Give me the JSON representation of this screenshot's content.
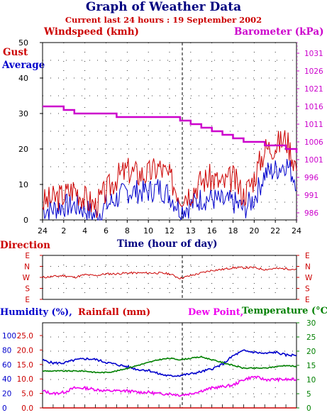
{
  "header": {
    "title": "Graph of Weather Data",
    "subtitle": "Current last 24 hours : 19 September 2002"
  },
  "colors": {
    "gust": "#cc0000",
    "average": "#0000cc",
    "barometer": "#cc00cc",
    "direction": "#cc0000",
    "humidity": "#0000cc",
    "rainfall": "#cc0000",
    "dewpoint": "#ee00ee",
    "temperature": "#008000",
    "title": "#000080"
  },
  "chart_data": [
    {
      "type": "line",
      "title": "Graph of Weather Data",
      "subtitle": "Current last 24 hours : 19 September 2002",
      "xlabel": "Time (hour of day)",
      "ylabel_left": "Windspeed (kmh)",
      "ylabel_right": "Barometer (kPa)",
      "legend_left": [
        "Gust",
        "Average"
      ],
      "ylim_left": [
        0,
        50
      ],
      "yticks_left": [
        "0",
        "10",
        "20",
        "30",
        "40",
        "50"
      ],
      "ylim_right": [
        984,
        1034
      ],
      "yticks_right": [
        "986",
        "991",
        "996",
        "1001",
        "1006",
        "1011",
        "1016",
        "1021",
        "1026",
        "1031"
      ],
      "xticks": [
        "24",
        "2",
        "4",
        "6",
        "8",
        "10",
        "12",
        "13",
        "16",
        "18",
        "20",
        "22",
        "24"
      ],
      "grid": true,
      "x_hours": [
        0,
        1,
        2,
        3,
        4,
        5,
        6,
        7,
        8,
        9,
        10,
        11,
        12,
        13,
        14,
        15,
        16,
        17,
        18,
        19,
        20,
        21,
        22,
        23,
        24
      ],
      "series": [
        {
          "name": "Gust",
          "axis": "left",
          "values": [
            5,
            6,
            7,
            9,
            6,
            4,
            8,
            12,
            14,
            13,
            13,
            15,
            12,
            7,
            8,
            11,
            12,
            10,
            12,
            7,
            12,
            20,
            21,
            23,
            15
          ]
        },
        {
          "name": "Average",
          "axis": "left",
          "values": [
            3,
            3,
            4,
            4,
            3,
            1,
            4,
            6,
            8,
            8,
            8,
            9,
            7,
            3,
            4,
            6,
            6,
            5,
            5,
            3,
            6,
            13,
            14,
            16,
            11
          ]
        },
        {
          "name": "Barometer",
          "axis": "right",
          "values": [
            1016,
            1016,
            1015,
            1014,
            1014,
            1014,
            1014,
            1013,
            1013,
            1013,
            1013,
            1013,
            1013,
            1012,
            1011,
            1010,
            1009,
            1008,
            1007,
            1006,
            1006,
            1005,
            1005,
            1004,
            1003
          ]
        }
      ]
    },
    {
      "type": "line",
      "title": "Direction",
      "yticks_left": [
        "N",
        "E",
        "S",
        "W",
        "N",
        "E"
      ],
      "yticks_right": [
        "E",
        "N",
        "W",
        "S",
        "E"
      ],
      "note": "direction axis ticks top to bottom",
      "grid": true,
      "x_hours": [
        0,
        1,
        2,
        3,
        4,
        5,
        6,
        7,
        8,
        9,
        10,
        11,
        12,
        13,
        14,
        15,
        16,
        17,
        18,
        19,
        20,
        21,
        22,
        23,
        24
      ],
      "series": [
        {
          "name": "Direction",
          "values": [
            2.5,
            2.6,
            2.7,
            2.5,
            2.8,
            2.7,
            2.9,
            2.9,
            3.0,
            3.0,
            3.0,
            3.0,
            2.9,
            2.4,
            2.7,
            3.0,
            3.3,
            3.4,
            3.6,
            3.6,
            3.6,
            3.4,
            3.5,
            3.5,
            3.4
          ]
        }
      ]
    },
    {
      "type": "line",
      "title": "Humidity / Rainfall / Dew Point / Temperature",
      "legend": [
        "Humidity (%),",
        "Rainfall (mm)",
        "Dew Point,",
        "Temperature (°C)"
      ],
      "yticks_humidity": [
        "0",
        "20",
        "40",
        "60",
        "80",
        "100"
      ],
      "yticks_rain": [
        "0.0",
        "5.0",
        "10.0",
        "15.0",
        "20.0",
        "25.0"
      ],
      "yticks_right": [
        "0",
        "5",
        "10",
        "15",
        "20",
        "25",
        "30"
      ],
      "ylim_right": [
        0,
        30
      ],
      "x_hours": [
        0,
        1,
        2,
        3,
        4,
        5,
        6,
        7,
        8,
        9,
        10,
        11,
        12,
        13,
        14,
        15,
        16,
        17,
        18,
        19,
        20,
        21,
        22,
        23,
        24
      ],
      "series": [
        {
          "name": "Humidity (%)",
          "axis": "humidity",
          "values": [
            66,
            62,
            62,
            66,
            68,
            67,
            63,
            60,
            57,
            53,
            52,
            47,
            44,
            45,
            47,
            50,
            54,
            60,
            72,
            79,
            77,
            75,
            77,
            73,
            73
          ]
        },
        {
          "name": "Temperature (°C)",
          "axis": "right",
          "values": [
            13,
            13,
            13,
            13,
            13,
            12.5,
            12.5,
            13,
            14,
            15,
            16,
            17,
            17.5,
            17,
            17.5,
            18,
            17,
            16,
            15,
            14,
            14,
            14,
            14.5,
            15,
            14.5
          ]
        },
        {
          "name": "Dew Point",
          "axis": "right",
          "values": [
            6,
            5,
            5.5,
            7,
            7,
            6.5,
            6,
            6,
            6,
            5.5,
            5.5,
            5,
            5,
            4.5,
            5,
            6,
            7,
            7.5,
            8,
            10,
            11,
            10,
            10,
            10,
            10
          ]
        },
        {
          "name": "Rainfall (mm)",
          "axis": "rain",
          "values": [
            0,
            0,
            0,
            0,
            0,
            0,
            0,
            0,
            0,
            0,
            0,
            0,
            0,
            0,
            0,
            0,
            0,
            0,
            0,
            0,
            0,
            0,
            0,
            0,
            0
          ]
        }
      ]
    }
  ]
}
